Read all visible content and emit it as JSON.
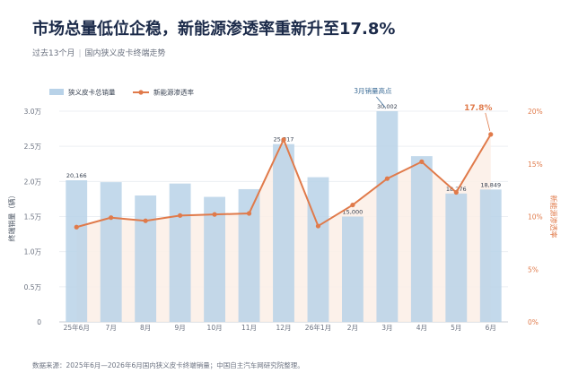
{
  "header": {
    "title": "市场总量低位企稳，新能源渗透率重新升至17.8%",
    "subtitle_left": "过去13个月",
    "subtitle_sep": "|",
    "subtitle_right": "国内狭义皮卡终端走势"
  },
  "footer": {
    "source": "数据来源：2025年6月—2026年6月国内狭义皮卡终端销量；中国自主汽车网研究院整理。"
  },
  "colors": {
    "bar": "#b8d2e8",
    "line": "#e07a4a",
    "area": "#fbeee6",
    "annotation": "#3d6d97"
  },
  "chart_data": {
    "type": "bar",
    "categories": [
      "25年6月",
      "7月",
      "8月",
      "9月",
      "10月",
      "11月",
      "12月",
      "26年1月",
      "2月",
      "3月",
      "4月",
      "5月",
      "6月"
    ],
    "series": [
      {
        "name": "狭义皮卡总销量",
        "type": "bar",
        "axis": "left",
        "values": [
          20166,
          19900,
          18000,
          19700,
          17800,
          18900,
          25317,
          20600,
          15000,
          30002,
          23600,
          18276,
          18849
        ]
      },
      {
        "name": "新能源渗透率",
        "type": "line",
        "axis": "right",
        "values": [
          9.0,
          9.9,
          9.6,
          10.1,
          10.2,
          10.3,
          17.3,
          9.1,
          11.1,
          13.6,
          15.2,
          12.3,
          17.8
        ]
      }
    ],
    "data_labels": [
      {
        "index": 0,
        "text": "20,166"
      },
      {
        "index": 6,
        "text": "25,317"
      },
      {
        "index": 8,
        "text": "15,000"
      },
      {
        "index": 9,
        "text": "30,002"
      },
      {
        "index": 11,
        "text": "18,276"
      },
      {
        "index": 12,
        "text": "18,849"
      }
    ],
    "ylabel": "终端销量（辆）",
    "y2label": "新能源渗透率",
    "ylim": [
      0,
      30000
    ],
    "y2lim": [
      0,
      20
    ],
    "yticks": [
      "0",
      "0.5万",
      "1.0万",
      "1.5万",
      "2.0万",
      "2.5万",
      "3.0万"
    ],
    "y2ticks": [
      "0%",
      "5%",
      "10%",
      "15%",
      "20%"
    ],
    "annotations": [
      {
        "index": 9,
        "text": "3月销量高点"
      },
      {
        "index": 12,
        "text": "17.8%"
      }
    ],
    "legend": "top-left",
    "grid": true
  }
}
